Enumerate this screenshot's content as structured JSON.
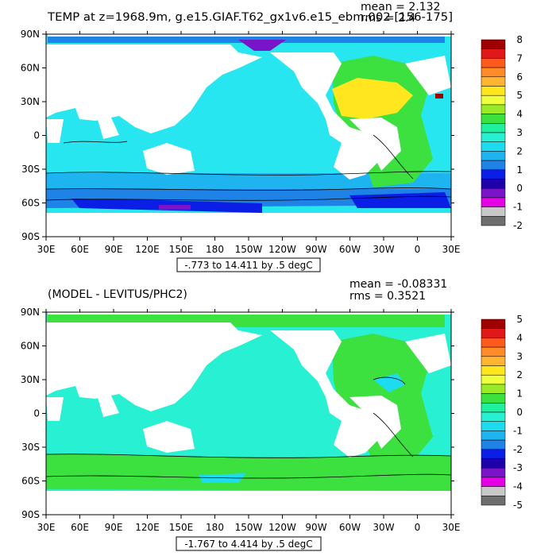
{
  "chart_data": [
    {
      "type": "heatmap",
      "title": "TEMP at z=1968.9m, g.e15.GIAF.T62_gx1v6.e15_ebm.002 [156-175]",
      "stats": {
        "mean": "mean = 2.132",
        "rms": "rms = 2.4"
      },
      "range_label": "-.773 to 14.411 by .5 degC",
      "x_ticks": [
        "30E",
        "60E",
        "90E",
        "120E",
        "150E",
        "180",
        "150W",
        "120W",
        "90W",
        "60W",
        "30W",
        "0",
        "30E"
      ],
      "y_ticks": [
        "90N",
        "60N",
        "30N",
        "0",
        "30S",
        "60S",
        "90S"
      ],
      "colorbar": {
        "labels": [
          "8",
          "7",
          "6",
          "5",
          "4",
          "3",
          "2",
          "1",
          "0",
          "-1",
          "-2"
        ],
        "colors": [
          "#a00000",
          "#e01818",
          "#ff5a1e",
          "#ff8c28",
          "#ffb432",
          "#ffe61e",
          "#f0ff3c",
          "#9bea28",
          "#3ce140",
          "#1ef0a0",
          "#28f0d2",
          "#1edcf0",
          "#1eb4f0",
          "#1e82e6",
          "#0a1ee6",
          "#1e00aa",
          "#7a14c8",
          "#e600e6",
          "#c8c8c8",
          "#6e6e6e"
        ]
      },
      "field": {
        "ocean_base": "#28e6f0",
        "regions": [
          {
            "name": "Southern Ocean band",
            "value": 1.0,
            "color": "#1eb4f0"
          },
          {
            "name": "Antarctic shelf",
            "value": -0.5,
            "color": "#0a1ee6"
          },
          {
            "name": "North Atlantic",
            "value": 3.5,
            "color": "#3ce140"
          },
          {
            "name": "Subpolar North Atlantic",
            "value": 4.5,
            "color": "#ffe61e"
          },
          {
            "name": "Arctic basin",
            "value": 1.5,
            "color": "#1e82e6"
          },
          {
            "name": "Mediterranean outflow",
            "value": 7.5,
            "color": "#a00000"
          }
        ]
      }
    },
    {
      "type": "heatmap",
      "title": "(MODEL - LEVITUS/PHC2)",
      "stats": {
        "mean": "mean = -0.08331",
        "rms": "rms = 0.3521"
      },
      "range_label": "-1.767 to 4.414 by .5 degC",
      "x_ticks": [
        "30E",
        "60E",
        "90E",
        "120E",
        "150E",
        "180",
        "150W",
        "120W",
        "90W",
        "60W",
        "30W",
        "0",
        "30E"
      ],
      "y_ticks": [
        "90N",
        "60N",
        "30N",
        "0",
        "30S",
        "60S",
        "90S"
      ],
      "colorbar": {
        "labels": [
          "5",
          "4",
          "3",
          "2",
          "1",
          "0",
          "-1",
          "-2",
          "-3",
          "-4",
          "-5"
        ],
        "colors": [
          "#a00000",
          "#e01818",
          "#ff5a1e",
          "#ff8c28",
          "#ffb432",
          "#ffe61e",
          "#f0ff3c",
          "#9bea28",
          "#3ce140",
          "#1ef0a0",
          "#28f0d2",
          "#1edcf0",
          "#1eb4f0",
          "#1e82e6",
          "#0a1ee6",
          "#1e00aa",
          "#7a14c8",
          "#e600e6",
          "#c8c8c8",
          "#6e6e6e"
        ]
      },
      "field": {
        "ocean_base": "#28f0d2",
        "regions": [
          {
            "name": "Southern Ocean band",
            "value": 0.5,
            "color": "#3ce140"
          },
          {
            "name": "North Atlantic",
            "value": 0.5,
            "color": "#3ce140"
          },
          {
            "name": "Arctic basin",
            "value": 0.5,
            "color": "#3ce140"
          },
          {
            "name": "Subtropical North Atlantic",
            "value": -0.5,
            "color": "#1edcf0"
          }
        ]
      }
    }
  ]
}
